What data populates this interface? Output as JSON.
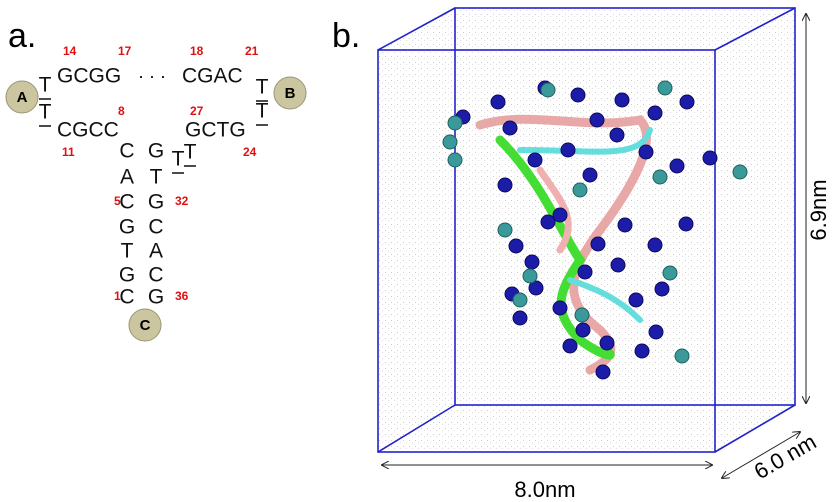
{
  "panel_a": {
    "label": "a.",
    "loop_labels": [
      "A",
      "B",
      "C"
    ],
    "strands": [
      "GCGG",
      "CGAC",
      "CGCC",
      "GCTG"
    ],
    "dots": "· · ·",
    "loop_bases": [
      "T",
      "T",
      "T",
      "T",
      "T",
      "T"
    ],
    "stem_left": [
      "C",
      "A",
      "C",
      "G",
      "T",
      "G",
      "C"
    ],
    "stem_right": [
      "G",
      "T",
      "G",
      "C",
      "A",
      "C",
      "G"
    ],
    "positions": [
      "14",
      "17",
      "18",
      "21",
      "8",
      "27",
      "11",
      "24",
      "5",
      "32",
      "1",
      "36"
    ]
  },
  "panel_b": {
    "label": "b.",
    "width": "8.0nm",
    "depth": "6.0 nm",
    "height": "6.9nm"
  }
}
